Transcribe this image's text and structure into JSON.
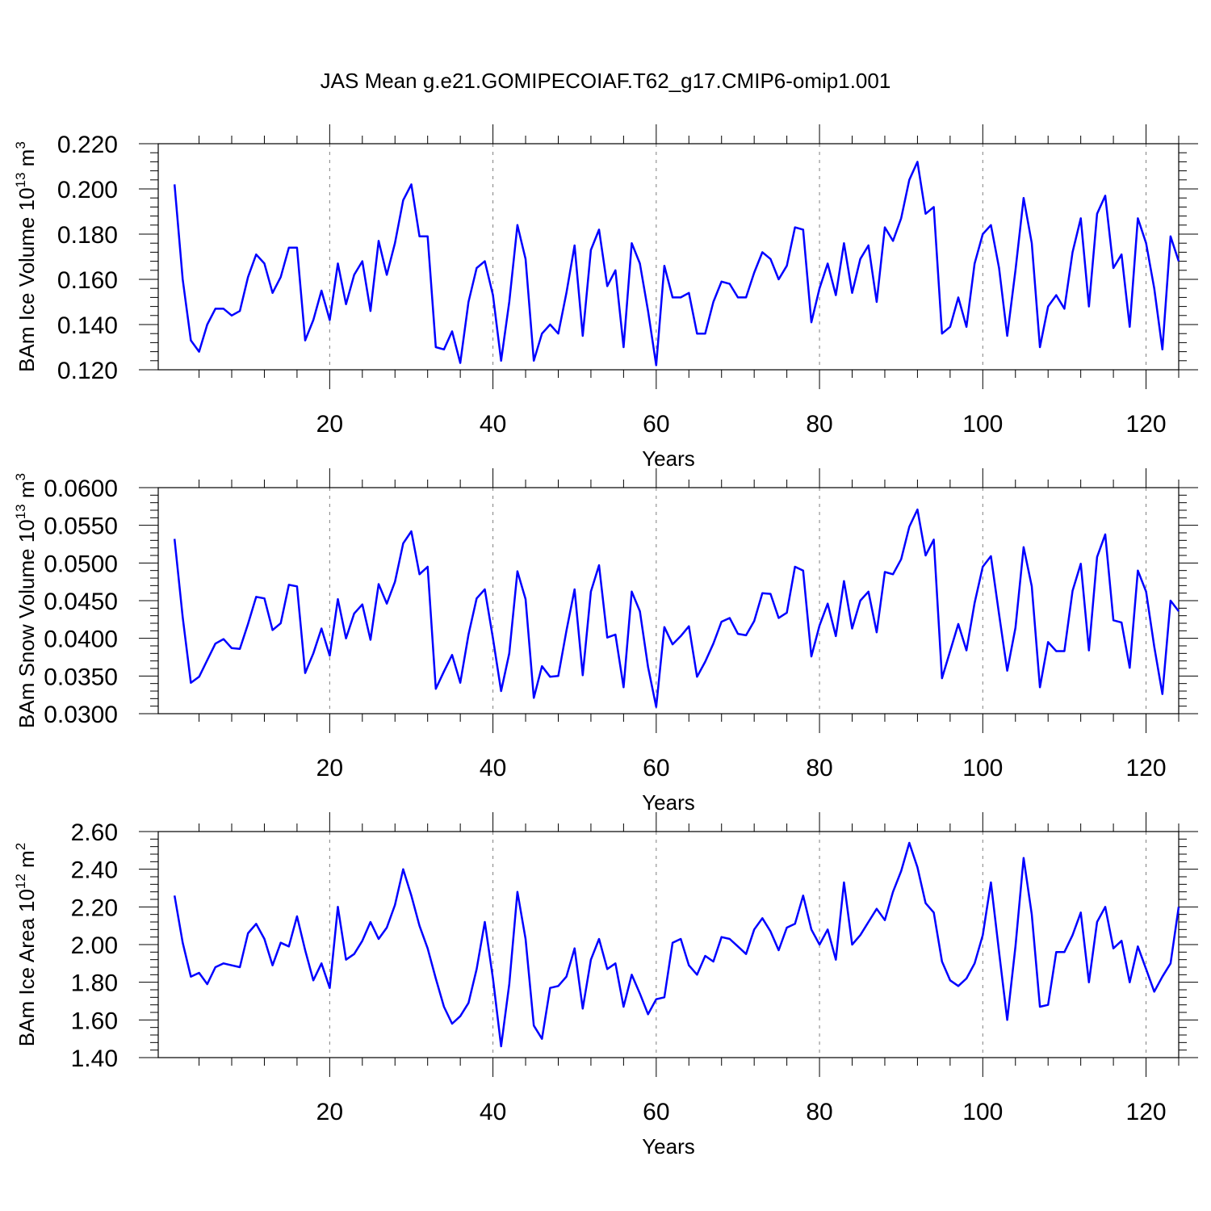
{
  "figure": {
    "title": "JAS Mean g.e21.GOMIPECOIAF.T62_g17.CMIP6-omip1.001"
  },
  "colors": {
    "line": "#0000ff",
    "axis": "#000000",
    "grid": "#7f7f7f"
  },
  "chart_data": [
    {
      "type": "line",
      "title": "",
      "xlabel": "Years",
      "ylabel": "BAm Ice Volume 10^13 m^3",
      "ylabel_parts": {
        "main": "BAm Ice Volume 10",
        "sup1": "13",
        "mid": " m",
        "sup2": "3"
      },
      "xlim": [
        -1,
        124
      ],
      "ylim": [
        0.12,
        0.22
      ],
      "xticks": [
        20,
        40,
        60,
        80,
        100,
        120
      ],
      "yticks": [
        0.12,
        0.14,
        0.16,
        0.18,
        0.2,
        0.22
      ],
      "ytick_labels": [
        "0.120",
        "0.140",
        "0.160",
        "0.180",
        "0.200",
        "0.220"
      ],
      "series": [
        {
          "name": "BAm Ice Volume",
          "x_start": 1,
          "values": [
            0.202,
            0.16,
            0.133,
            0.128,
            0.14,
            0.147,
            0.147,
            0.144,
            0.146,
            0.161,
            0.171,
            0.167,
            0.154,
            0.161,
            0.174,
            0.174,
            0.133,
            0.142,
            0.155,
            0.142,
            0.167,
            0.149,
            0.162,
            0.168,
            0.146,
            0.177,
            0.162,
            0.176,
            0.195,
            0.202,
            0.179,
            0.179,
            0.13,
            0.129,
            0.137,
            0.123,
            0.15,
            0.165,
            0.168,
            0.153,
            0.124,
            0.15,
            0.184,
            0.169,
            0.124,
            0.136,
            0.14,
            0.136,
            0.154,
            0.175,
            0.135,
            0.173,
            0.182,
            0.157,
            0.164,
            0.13,
            0.176,
            0.167,
            0.146,
            0.122,
            0.166,
            0.152,
            0.152,
            0.154,
            0.136,
            0.136,
            0.15,
            0.159,
            0.158,
            0.152,
            0.152,
            0.163,
            0.172,
            0.169,
            0.16,
            0.166,
            0.183,
            0.182,
            0.141,
            0.156,
            0.167,
            0.153,
            0.176,
            0.154,
            0.169,
            0.175,
            0.15,
            0.183,
            0.177,
            0.187,
            0.204,
            0.212,
            0.189,
            0.192,
            0.136,
            0.139,
            0.152,
            0.139,
            0.167,
            0.18,
            0.184,
            0.165,
            0.135,
            0.164,
            0.196,
            0.176,
            0.13,
            0.148,
            0.153,
            0.147,
            0.172,
            0.187,
            0.148,
            0.189,
            0.197,
            0.165,
            0.171,
            0.139,
            0.187,
            0.176,
            0.156,
            0.129,
            0.179,
            0.168
          ]
        }
      ]
    },
    {
      "type": "line",
      "title": "",
      "xlabel": "Years",
      "ylabel": "BAm Snow Volume 10^13 m^3",
      "ylabel_parts": {
        "main": "BAm Snow Volume 10",
        "sup1": "13",
        "mid": " m",
        "sup2": "3"
      },
      "xlim": [
        -1,
        124
      ],
      "ylim": [
        0.03,
        0.06
      ],
      "xticks": [
        20,
        40,
        60,
        80,
        100,
        120
      ],
      "yticks": [
        0.03,
        0.035,
        0.04,
        0.045,
        0.05,
        0.055,
        0.06
      ],
      "ytick_labels": [
        "0.0300",
        "0.0350",
        "0.0400",
        "0.0450",
        "0.0500",
        "0.0550",
        "0.0600"
      ],
      "series": [
        {
          "name": "BAm Snow Volume",
          "x_start": 1,
          "values": [
            0.0532,
            0.0428,
            0.0341,
            0.0349,
            0.0371,
            0.0393,
            0.0399,
            0.0387,
            0.0386,
            0.0419,
            0.0455,
            0.0453,
            0.0411,
            0.042,
            0.0471,
            0.0469,
            0.0354,
            0.038,
            0.0413,
            0.0377,
            0.0452,
            0.04,
            0.0433,
            0.0445,
            0.0398,
            0.0472,
            0.0446,
            0.0475,
            0.0526,
            0.0542,
            0.0485,
            0.0495,
            0.0333,
            0.0356,
            0.0378,
            0.0341,
            0.0405,
            0.0453,
            0.0465,
            0.04,
            0.033,
            0.038,
            0.0489,
            0.0452,
            0.0321,
            0.0363,
            0.0349,
            0.035,
            0.041,
            0.0465,
            0.0351,
            0.0462,
            0.0497,
            0.0401,
            0.0405,
            0.0335,
            0.0462,
            0.0436,
            0.0362,
            0.0309,
            0.0415,
            0.0392,
            0.0403,
            0.0416,
            0.0349,
            0.0369,
            0.0393,
            0.0422,
            0.0427,
            0.0406,
            0.0404,
            0.0423,
            0.046,
            0.0459,
            0.0427,
            0.0434,
            0.0495,
            0.049,
            0.0376,
            0.0417,
            0.0446,
            0.0403,
            0.0476,
            0.0413,
            0.045,
            0.0462,
            0.0408,
            0.0488,
            0.0485,
            0.0505,
            0.0548,
            0.0571,
            0.051,
            0.0531,
            0.0347,
            0.0383,
            0.0419,
            0.0384,
            0.0447,
            0.0495,
            0.0509,
            0.0432,
            0.0357,
            0.0414,
            0.0521,
            0.0469,
            0.0335,
            0.0395,
            0.0383,
            0.0383,
            0.0463,
            0.0499,
            0.0384,
            0.0508,
            0.0538,
            0.0424,
            0.0421,
            0.0361,
            0.049,
            0.0462,
            0.0389,
            0.0326,
            0.045,
            0.0436
          ]
        }
      ]
    },
    {
      "type": "line",
      "title": "",
      "xlabel": "Years",
      "ylabel": "BAm Ice Area 10^12 m^2",
      "ylabel_parts": {
        "main": "BAm Ice Area 10",
        "sup1": "12",
        "mid": " m",
        "sup2": "2"
      },
      "xlim": [
        -1,
        124
      ],
      "ylim": [
        1.4,
        2.6
      ],
      "xticks": [
        20,
        40,
        60,
        80,
        100,
        120
      ],
      "yticks": [
        1.4,
        1.6,
        1.8,
        2.0,
        2.2,
        2.4,
        2.6
      ],
      "ytick_labels": [
        "1.40",
        "1.60",
        "1.80",
        "2.00",
        "2.20",
        "2.40",
        "2.60"
      ],
      "series": [
        {
          "name": "BAm Ice Area",
          "x_start": 1,
          "values": [
            2.26,
            2.01,
            1.83,
            1.85,
            1.79,
            1.88,
            1.9,
            1.89,
            1.88,
            2.06,
            2.11,
            2.03,
            1.89,
            2.01,
            1.99,
            2.15,
            1.97,
            1.81,
            1.9,
            1.77,
            2.2,
            1.92,
            1.95,
            2.02,
            2.12,
            2.03,
            2.09,
            2.21,
            2.4,
            2.26,
            2.1,
            1.98,
            1.82,
            1.67,
            1.58,
            1.62,
            1.69,
            1.87,
            2.12,
            1.82,
            1.46,
            1.79,
            2.28,
            2.03,
            1.57,
            1.5,
            1.77,
            1.78,
            1.83,
            1.98,
            1.66,
            1.92,
            2.03,
            1.87,
            1.9,
            1.67,
            1.84,
            1.74,
            1.63,
            1.71,
            1.72,
            2.01,
            2.03,
            1.89,
            1.84,
            1.94,
            1.91,
            2.04,
            2.03,
            1.99,
            1.95,
            2.08,
            2.14,
            2.07,
            1.97,
            2.09,
            2.11,
            2.26,
            2.08,
            2.0,
            2.08,
            1.92,
            2.33,
            2.0,
            2.05,
            2.12,
            2.19,
            2.13,
            2.28,
            2.39,
            2.54,
            2.41,
            2.22,
            2.17,
            1.91,
            1.81,
            1.78,
            1.82,
            1.9,
            2.05,
            2.33,
            1.96,
            1.6,
            1.99,
            2.46,
            2.16,
            1.67,
            1.68,
            1.96,
            1.96,
            2.05,
            2.17,
            1.8,
            2.12,
            2.2,
            1.98,
            2.02,
            1.8,
            1.99,
            1.87,
            1.75,
            1.83,
            1.9,
            2.2
          ]
        }
      ]
    }
  ]
}
